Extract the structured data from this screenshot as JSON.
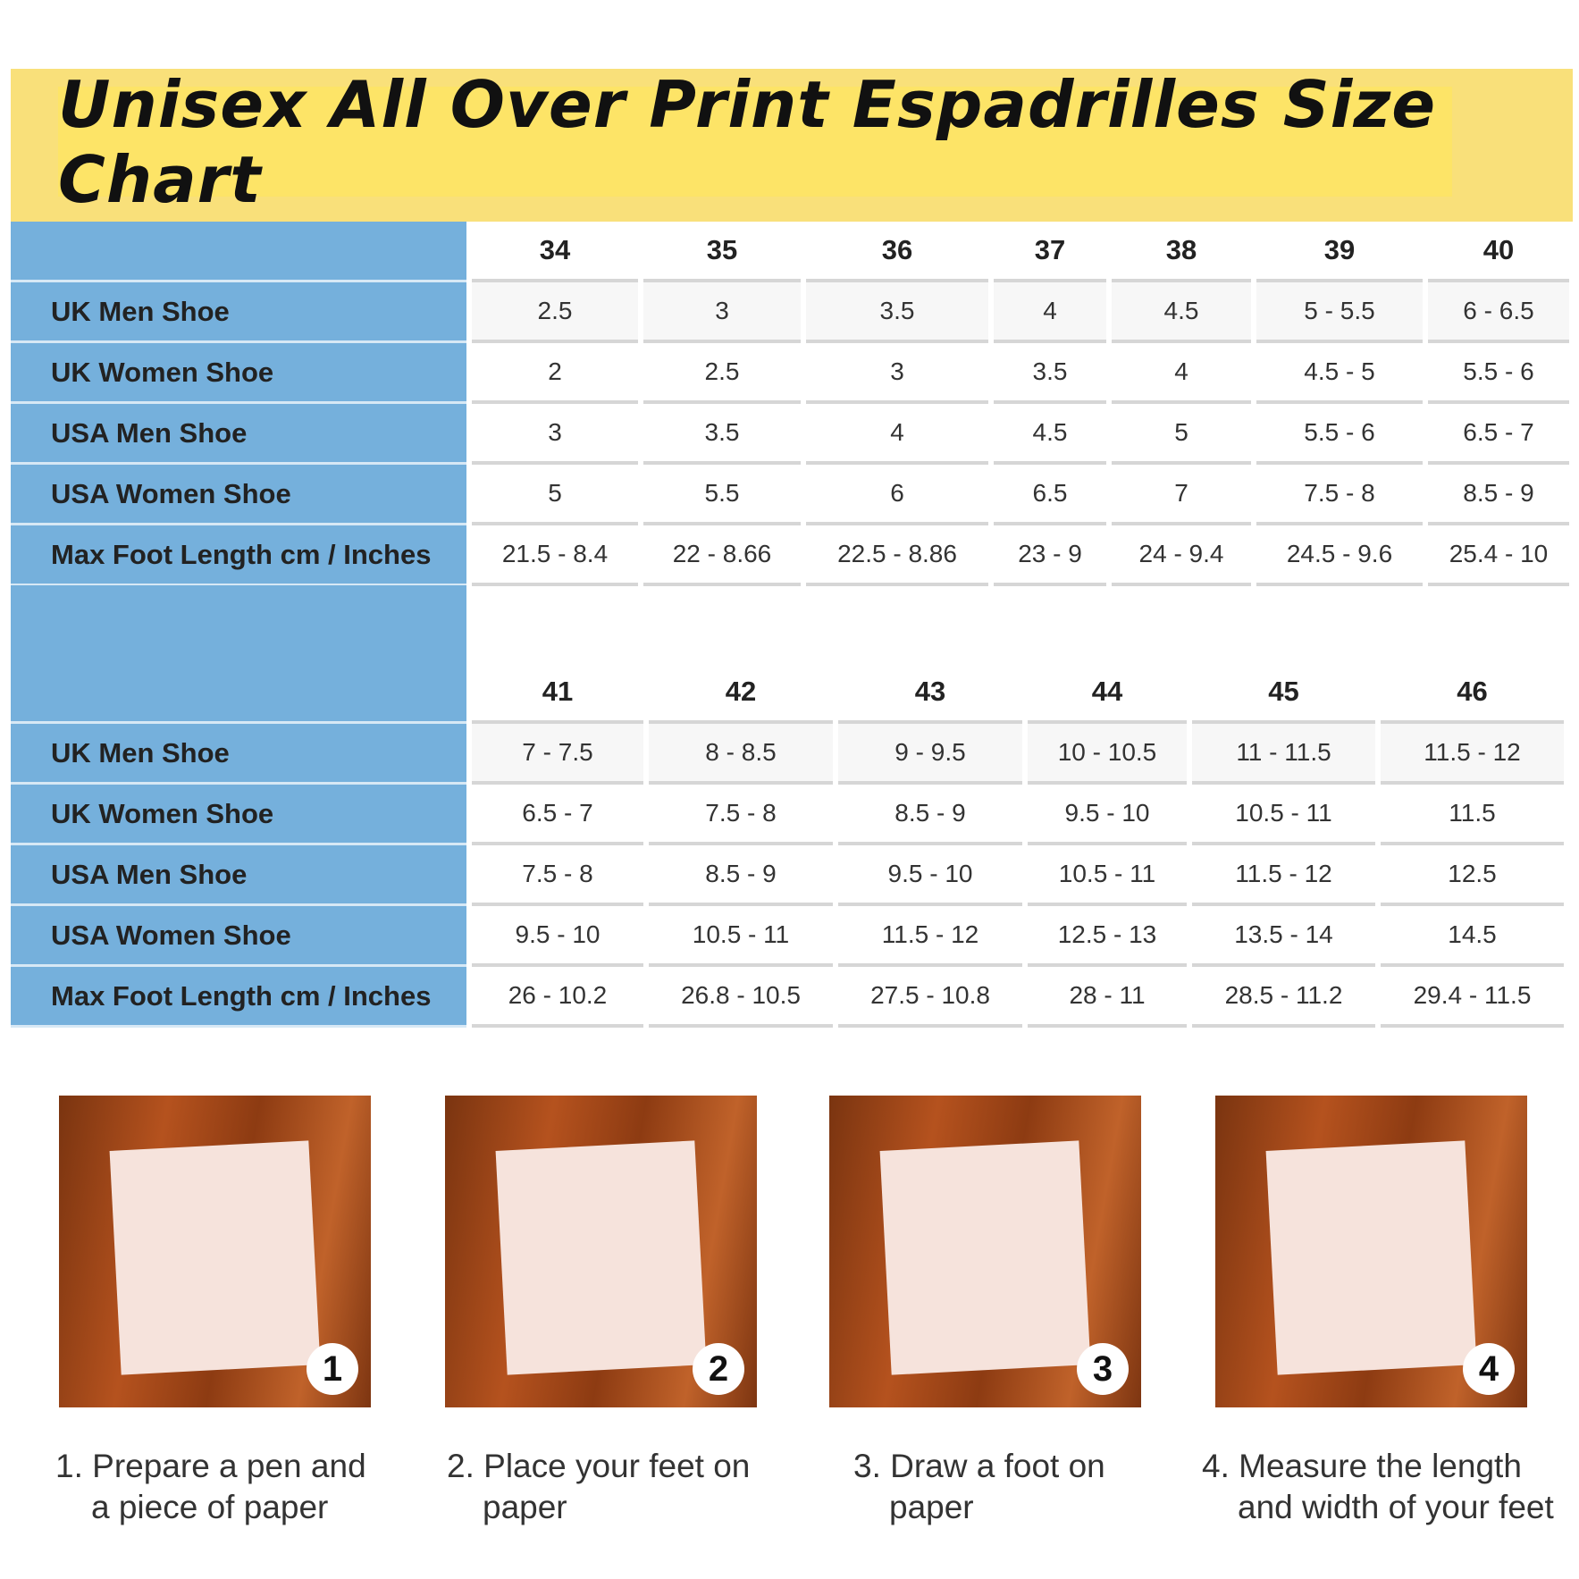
{
  "title": "Unisex All Over Print Espadrilles Size Chart",
  "colors": {
    "header_bg": "#f9e07a",
    "label_bg": "#75b0dc"
  },
  "row_labels": [
    "UK Men Shoe",
    "UK Women Shoe",
    "USA Men Shoe",
    "USA Women Shoe",
    "Max Foot Length cm / Inches"
  ],
  "table1": {
    "sizes": [
      "34",
      "35",
      "36",
      "37",
      "38",
      "39",
      "40"
    ],
    "rows": [
      [
        "2.5",
        "3",
        "3.5",
        "4",
        "4.5",
        "5 - 5.5",
        "6 - 6.5"
      ],
      [
        "2",
        "2.5",
        "3",
        "3.5",
        "4",
        "4.5 - 5",
        "5.5 - 6"
      ],
      [
        "3",
        "3.5",
        "4",
        "4.5",
        "5",
        "5.5 - 6",
        "6.5 - 7"
      ],
      [
        "5",
        "5.5",
        "6",
        "6.5",
        "7",
        "7.5 - 8",
        "8.5 - 9"
      ],
      [
        "21.5 - 8.4",
        "22 - 8.66",
        "22.5 - 8.86",
        "23 - 9",
        "24 - 9.4",
        "24.5 - 9.6",
        "25.4 - 10"
      ]
    ]
  },
  "table2": {
    "sizes": [
      "41",
      "42",
      "43",
      "44",
      "45",
      "46"
    ],
    "rows": [
      [
        "7 - 7.5",
        "8 - 8.5",
        "9 - 9.5",
        "10 - 10.5",
        "11 - 11.5",
        "11.5 - 12"
      ],
      [
        "6.5 - 7",
        "7.5 - 8",
        "8.5 - 9",
        "9.5 - 10",
        "10.5 - 11",
        "11.5"
      ],
      [
        "7.5 - 8",
        "8.5 - 9",
        "9.5 - 10",
        "10.5 - 11",
        "11.5 - 12",
        "12.5"
      ],
      [
        "9.5 - 10",
        "10.5 - 11",
        "11.5 - 12",
        "12.5 - 13",
        "13.5 - 14",
        "14.5"
      ],
      [
        "26 - 10.2",
        "26.8 - 10.5",
        "27.5 - 10.8",
        "28 - 11",
        "28.5 - 11.2",
        "29.4 - 11.5"
      ]
    ]
  },
  "steps": [
    {
      "num": "1",
      "line1": "1. Prepare a pen and",
      "line2": "a piece of paper"
    },
    {
      "num": "2",
      "line1": "2. Place your feet on",
      "line2": "paper"
    },
    {
      "num": "3",
      "line1": "3. Draw a foot on",
      "line2": "paper"
    },
    {
      "num": "4",
      "line1": "4. Measure the length",
      "line2": "and width of your feet"
    }
  ]
}
